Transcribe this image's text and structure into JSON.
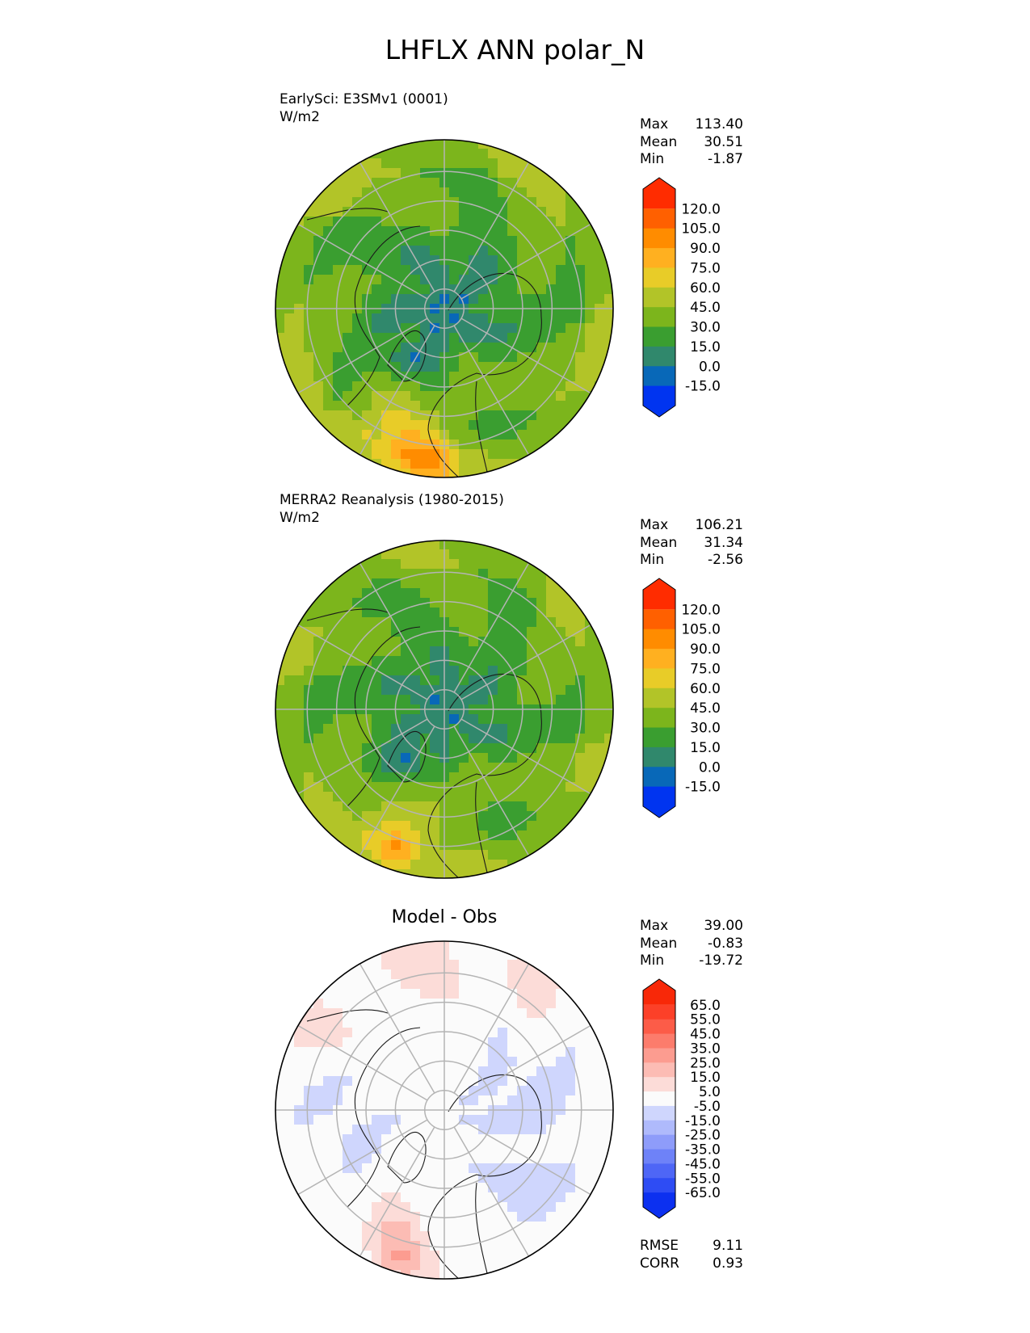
{
  "title": "LHFLX ANN polar_N",
  "panels": [
    {
      "id": "test",
      "title": "",
      "subtitle": "EarlySci: E3SMv1 (0001)",
      "units": "W/m2",
      "stats": {
        "max_label": "Max",
        "max": "113.40",
        "mean_label": "Mean",
        "mean": "30.51",
        "min_label": "Min",
        "min": "-1.87"
      }
    },
    {
      "id": "ref",
      "title": "",
      "subtitle": "MERRA2 Reanalysis (1980-2015)",
      "units": "W/m2",
      "stats": {
        "max_label": "Max",
        "max": "106.21",
        "mean_label": "Mean",
        "mean": "31.34",
        "min_label": "Min",
        "min": "-2.56"
      }
    },
    {
      "id": "diff",
      "title": "Model - Obs",
      "subtitle": "",
      "units": "",
      "stats": {
        "max_label": "Max",
        "max": "39.00",
        "mean_label": "Mean",
        "mean": "-0.83",
        "min_label": "Min",
        "min": "-19.72"
      },
      "metrics": {
        "rmse_label": "RMSE",
        "rmse": "9.11",
        "corr_label": "CORR",
        "corr": "0.93"
      }
    }
  ],
  "chart_data": [
    {
      "type": "heatmap",
      "projection": "north polar stereographic",
      "subtitle": "EarlySci: E3SMv1 (0001)",
      "units": "W/m2",
      "colorbar": {
        "levels": [
          -15.0,
          0.0,
          15.0,
          30.0,
          45.0,
          60.0,
          75.0,
          90.0,
          105.0,
          120.0
        ],
        "tick_labels": [
          "-15.0",
          "0.0",
          "15.0",
          "30.0",
          "45.0",
          "60.0",
          "75.0",
          "90.0",
          "105.0",
          "120.0"
        ],
        "colors": [
          "#0034f0",
          "#0868b8",
          "#30886c",
          "#3a9e30",
          "#7cb51c",
          "#b2c428",
          "#e8cc28",
          "#ffb020",
          "#ff8c00",
          "#ff6000",
          "#ff2c00"
        ],
        "extend": "both"
      },
      "stats": {
        "max": 113.4,
        "mean": 30.51,
        "min": -1.87
      }
    },
    {
      "type": "heatmap",
      "projection": "north polar stereographic",
      "subtitle": "MERRA2 Reanalysis (1980-2015)",
      "units": "W/m2",
      "colorbar": {
        "levels": [
          -15.0,
          0.0,
          15.0,
          30.0,
          45.0,
          60.0,
          75.0,
          90.0,
          105.0,
          120.0
        ],
        "tick_labels": [
          "-15.0",
          "0.0",
          "15.0",
          "30.0",
          "45.0",
          "60.0",
          "75.0",
          "90.0",
          "105.0",
          "120.0"
        ],
        "colors": [
          "#0034f0",
          "#0868b8",
          "#30886c",
          "#3a9e30",
          "#7cb51c",
          "#b2c428",
          "#e8cc28",
          "#ffb020",
          "#ff8c00",
          "#ff6000",
          "#ff2c00"
        ],
        "extend": "both"
      },
      "stats": {
        "max": 106.21,
        "mean": 31.34,
        "min": -2.56
      }
    },
    {
      "type": "heatmap",
      "projection": "north polar stereographic",
      "title": "Model - Obs",
      "colorbar": {
        "levels": [
          -65.0,
          -55.0,
          -45.0,
          -35.0,
          -25.0,
          -15.0,
          -5.0,
          5.0,
          15.0,
          25.0,
          35.0,
          45.0,
          55.0,
          65.0
        ],
        "tick_labels": [
          "-65.0",
          "-55.0",
          "-45.0",
          "-35.0",
          "-25.0",
          "-15.0",
          "-5.0",
          "5.0",
          "15.0",
          "25.0",
          "35.0",
          "45.0",
          "55.0",
          "65.0"
        ],
        "colors": [
          "#0c30f0",
          "#2e4cf4",
          "#4e66f6",
          "#6e82f8",
          "#8e9cfa",
          "#afbafc",
          "#cfd6fd",
          "#fbfbfb",
          "#fcdcd8",
          "#fcbcb4",
          "#fc9c90",
          "#fc7c6c",
          "#fc5c48",
          "#fc4028",
          "#f82808"
        ],
        "extend": "both"
      },
      "stats": {
        "max": 39.0,
        "mean": -0.83,
        "min": -19.72
      },
      "metrics": {
        "rmse": 9.11,
        "corr": 0.93
      }
    }
  ]
}
